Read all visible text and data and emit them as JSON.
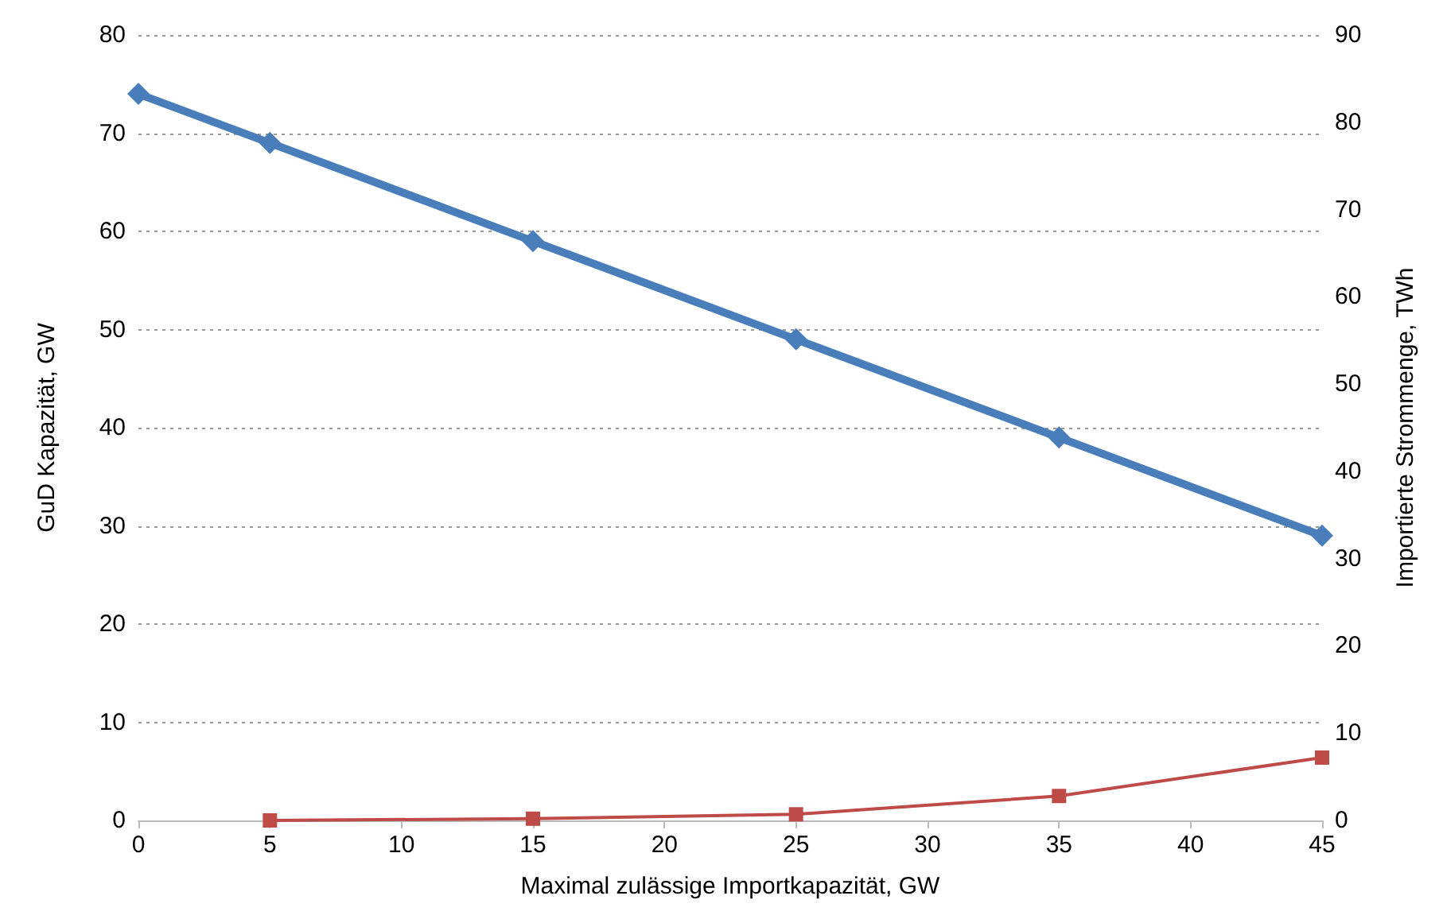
{
  "chart_data": {
    "type": "line",
    "xlabel": "Maximal zulässige Importkapazität, GW",
    "ylabel": "GuD Kapazität, GW",
    "y2label": "Importierte Strommenge, TWh",
    "series": [
      {
        "color": "#4a7ebb",
        "marker": "diamond",
        "x": [
          0,
          5,
          15,
          25,
          35,
          45
        ],
        "values": [
          74,
          69,
          59,
          49,
          39,
          29
        ]
      },
      {
        "color": "#be4b48",
        "marker": "square",
        "axis": "y2",
        "x": [
          5,
          15,
          25,
          35,
          45
        ],
        "values": [
          0,
          0.2,
          0.7,
          2.8,
          7.2
        ]
      }
    ],
    "xlim": [
      0,
      45
    ],
    "xticks": [
      0,
      5,
      10,
      15,
      20,
      25,
      30,
      35,
      40,
      45
    ],
    "ylim": [
      0,
      80
    ],
    "yticks": [
      0,
      10,
      20,
      30,
      40,
      50,
      60,
      70,
      80
    ],
    "y2lim": [
      0,
      90
    ],
    "y2ticks": [
      0,
      10,
      20,
      30,
      40,
      50,
      60,
      70,
      80,
      90
    ],
    "grid": "y"
  }
}
